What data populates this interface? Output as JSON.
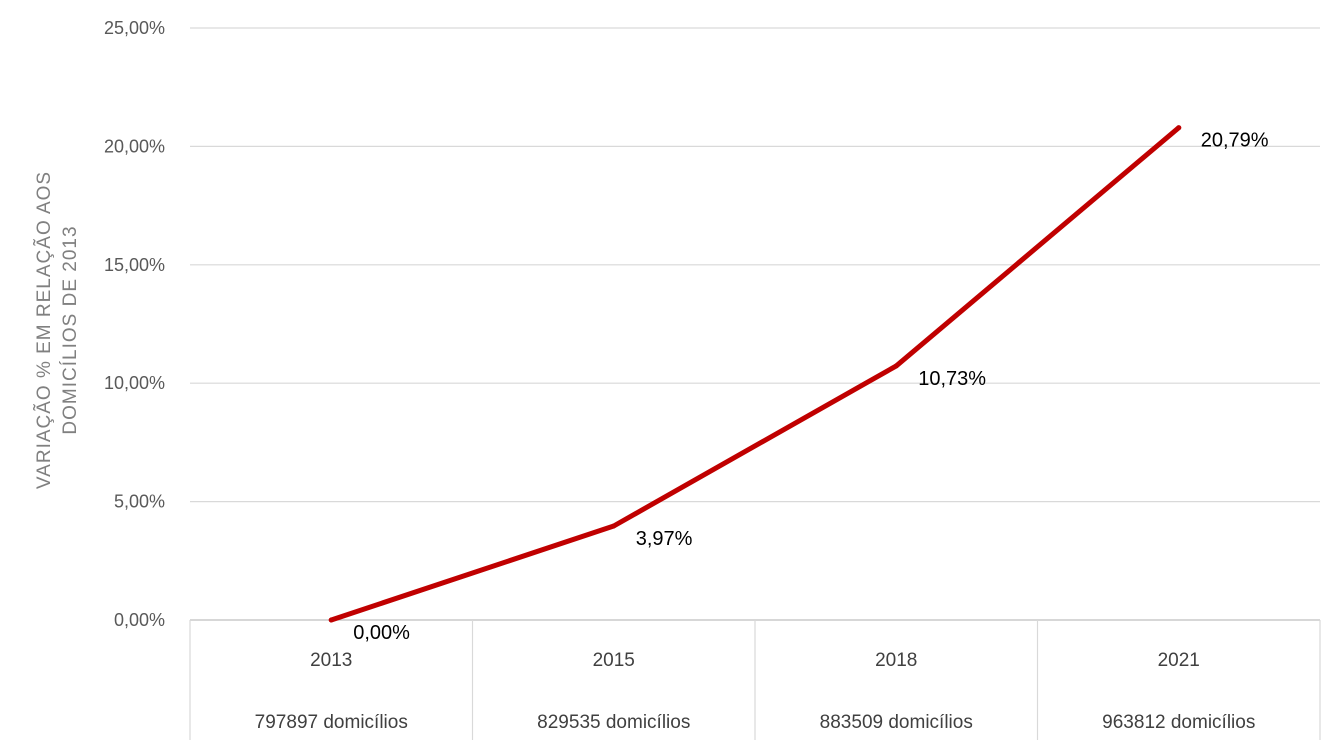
{
  "chart_data": {
    "type": "line",
    "categories": [
      "2013",
      "2015",
      "2018",
      "2021"
    ],
    "category_sublabels": [
      "797897 domicílios",
      "829535 domicílios",
      "883509 domicílios",
      "963812 domicílios"
    ],
    "values": [
      0.0,
      3.97,
      10.73,
      20.79
    ],
    "data_labels": [
      "0,00%",
      "3,97%",
      "10,73%",
      "20,79%"
    ],
    "ylabel_lines": [
      "VARIAÇÃO % EM RELAÇÃO AOS",
      "DOMICÍLIOS DE 2013"
    ],
    "yticks": [
      0,
      5,
      10,
      15,
      20,
      25
    ],
    "ytick_labels": [
      "0,00%",
      "5,00%",
      "10,00%",
      "15,00%",
      "20,00%",
      "25,00%"
    ],
    "ylim": [
      0,
      25
    ],
    "grid": true,
    "legend": "none",
    "line_color": "#c00000"
  }
}
